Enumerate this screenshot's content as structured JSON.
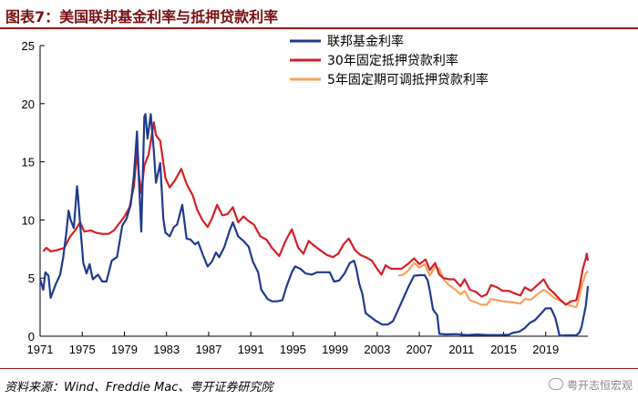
{
  "header": {
    "title": "图表7：美国联邦基金利率与抵押贷款利率"
  },
  "footer": {
    "source": "资料来源：Wind、Freddie Mac、粤开证券研究院",
    "watermark": "粤开志恒宏观"
  },
  "chart_data": {
    "type": "line",
    "title": "",
    "xlabel": "",
    "ylabel": "",
    "xlim": [
      1971,
      2023
    ],
    "ylim": [
      0,
      25
    ],
    "x_ticks": [
      "1971",
      "1975",
      "1979",
      "1983",
      "1987",
      "1991",
      "1995",
      "1999",
      "2003",
      "2007",
      "2011",
      "2015",
      "2019"
    ],
    "y_ticks": [
      "0",
      "5",
      "10",
      "15",
      "20",
      "25"
    ],
    "grid": false,
    "legend_position": "top-right",
    "series": [
      {
        "name": "联邦基金利率",
        "color": "#1f3b8f",
        "points": [
          [
            1971.0,
            4.9
          ],
          [
            1971.3,
            4.0
          ],
          [
            1971.5,
            5.5
          ],
          [
            1971.8,
            5.2
          ],
          [
            1972.0,
            3.3
          ],
          [
            1972.5,
            4.5
          ],
          [
            1972.9,
            5.3
          ],
          [
            1973.2,
            6.8
          ],
          [
            1973.5,
            9.0
          ],
          [
            1973.7,
            10.8
          ],
          [
            1973.9,
            10.0
          ],
          [
            1974.2,
            9.3
          ],
          [
            1974.5,
            12.9
          ],
          [
            1974.6,
            12.0
          ],
          [
            1974.9,
            8.5
          ],
          [
            1975.1,
            6.3
          ],
          [
            1975.4,
            5.4
          ],
          [
            1975.7,
            6.2
          ],
          [
            1976.0,
            4.9
          ],
          [
            1976.5,
            5.3
          ],
          [
            1976.9,
            4.7
          ],
          [
            1977.3,
            4.7
          ],
          [
            1977.8,
            6.5
          ],
          [
            1978.3,
            6.8
          ],
          [
            1978.8,
            9.5
          ],
          [
            1979.2,
            10.1
          ],
          [
            1979.6,
            11.3
          ],
          [
            1979.9,
            13.8
          ],
          [
            1980.2,
            17.6
          ],
          [
            1980.4,
            13.2
          ],
          [
            1980.6,
            9.0
          ],
          [
            1980.9,
            18.9
          ],
          [
            1981.0,
            19.1
          ],
          [
            1981.2,
            17.0
          ],
          [
            1981.5,
            19.1
          ],
          [
            1981.8,
            15.9
          ],
          [
            1982.0,
            13.2
          ],
          [
            1982.4,
            14.9
          ],
          [
            1982.7,
            10.1
          ],
          [
            1982.9,
            8.9
          ],
          [
            1983.3,
            8.6
          ],
          [
            1983.7,
            9.4
          ],
          [
            1984.0,
            9.6
          ],
          [
            1984.5,
            11.3
          ],
          [
            1984.9,
            8.4
          ],
          [
            1985.3,
            8.3
          ],
          [
            1985.7,
            7.9
          ],
          [
            1986.0,
            8.1
          ],
          [
            1986.5,
            6.9
          ],
          [
            1986.9,
            6.0
          ],
          [
            1987.3,
            6.4
          ],
          [
            1987.7,
            7.2
          ],
          [
            1988.0,
            6.8
          ],
          [
            1988.5,
            7.7
          ],
          [
            1989.0,
            9.1
          ],
          [
            1989.3,
            9.8
          ],
          [
            1989.8,
            8.6
          ],
          [
            1990.3,
            8.2
          ],
          [
            1990.8,
            7.7
          ],
          [
            1991.2,
            6.4
          ],
          [
            1991.7,
            5.5
          ],
          [
            1992.0,
            4.0
          ],
          [
            1992.6,
            3.2
          ],
          [
            1993.0,
            3.0
          ],
          [
            1993.5,
            3.0
          ],
          [
            1994.0,
            3.1
          ],
          [
            1994.4,
            4.3
          ],
          [
            1994.9,
            5.5
          ],
          [
            1995.2,
            6.0
          ],
          [
            1995.7,
            5.8
          ],
          [
            1996.2,
            5.4
          ],
          [
            1996.8,
            5.3
          ],
          [
            1997.3,
            5.5
          ],
          [
            1997.9,
            5.5
          ],
          [
            1998.5,
            5.5
          ],
          [
            1998.9,
            4.7
          ],
          [
            1999.4,
            4.8
          ],
          [
            1999.9,
            5.4
          ],
          [
            2000.4,
            6.3
          ],
          [
            2000.8,
            6.5
          ],
          [
            2001.0,
            5.9
          ],
          [
            2001.3,
            4.5
          ],
          [
            2001.6,
            3.6
          ],
          [
            2001.9,
            2.0
          ],
          [
            2002.3,
            1.7
          ],
          [
            2002.9,
            1.3
          ],
          [
            2003.5,
            1.0
          ],
          [
            2004.0,
            1.0
          ],
          [
            2004.5,
            1.3
          ],
          [
            2005.0,
            2.3
          ],
          [
            2005.5,
            3.3
          ],
          [
            2006.0,
            4.3
          ],
          [
            2006.5,
            5.2
          ],
          [
            2007.0,
            5.25
          ],
          [
            2007.5,
            5.25
          ],
          [
            2007.8,
            4.8
          ],
          [
            2008.0,
            3.9
          ],
          [
            2008.3,
            2.3
          ],
          [
            2008.7,
            1.8
          ],
          [
            2008.9,
            0.2
          ],
          [
            2009.5,
            0.16
          ],
          [
            2010.5,
            0.18
          ],
          [
            2011.5,
            0.1
          ],
          [
            2012.5,
            0.15
          ],
          [
            2013.5,
            0.1
          ],
          [
            2014.5,
            0.1
          ],
          [
            2015.5,
            0.13
          ],
          [
            2015.9,
            0.3
          ],
          [
            2016.5,
            0.4
          ],
          [
            2017.0,
            0.7
          ],
          [
            2017.5,
            1.15
          ],
          [
            2018.0,
            1.4
          ],
          [
            2018.5,
            1.9
          ],
          [
            2019.0,
            2.4
          ],
          [
            2019.5,
            2.4
          ],
          [
            2019.9,
            1.6
          ],
          [
            2020.2,
            0.5
          ],
          [
            2020.3,
            0.05
          ],
          [
            2021.0,
            0.08
          ],
          [
            2021.9,
            0.08
          ],
          [
            2022.2,
            0.33
          ],
          [
            2022.4,
            0.8
          ],
          [
            2022.6,
            1.7
          ],
          [
            2022.8,
            2.6
          ],
          [
            2022.95,
            3.8
          ],
          [
            2023.0,
            4.3
          ]
        ]
      },
      {
        "name": "30年固定抵押贷款利率",
        "color": "#d41f26",
        "points": [
          [
            1971.3,
            7.3
          ],
          [
            1971.6,
            7.6
          ],
          [
            1972.0,
            7.3
          ],
          [
            1972.6,
            7.4
          ],
          [
            1973.3,
            7.6
          ],
          [
            1973.8,
            8.5
          ],
          [
            1974.4,
            9.2
          ],
          [
            1974.8,
            9.8
          ],
          [
            1975.2,
            9.0
          ],
          [
            1975.8,
            9.1
          ],
          [
            1976.3,
            8.9
          ],
          [
            1976.9,
            8.8
          ],
          [
            1977.5,
            8.8
          ],
          [
            1978.0,
            9.1
          ],
          [
            1978.6,
            9.8
          ],
          [
            1979.0,
            10.3
          ],
          [
            1979.5,
            11.1
          ],
          [
            1979.9,
            12.9
          ],
          [
            1980.2,
            15.8
          ],
          [
            1980.4,
            13.8
          ],
          [
            1980.6,
            12.3
          ],
          [
            1980.9,
            14.7
          ],
          [
            1981.3,
            15.6
          ],
          [
            1981.8,
            18.4
          ],
          [
            1982.0,
            17.3
          ],
          [
            1982.4,
            16.8
          ],
          [
            1982.9,
            13.6
          ],
          [
            1983.3,
            12.8
          ],
          [
            1983.8,
            13.4
          ],
          [
            1984.4,
            14.4
          ],
          [
            1984.9,
            13.1
          ],
          [
            1985.5,
            12.1
          ],
          [
            1985.9,
            10.9
          ],
          [
            1986.4,
            10.0
          ],
          [
            1986.9,
            9.4
          ],
          [
            1987.3,
            10.1
          ],
          [
            1987.8,
            11.3
          ],
          [
            1988.3,
            10.4
          ],
          [
            1988.8,
            10.5
          ],
          [
            1989.3,
            11.1
          ],
          [
            1989.8,
            9.8
          ],
          [
            1990.3,
            10.3
          ],
          [
            1990.8,
            9.9
          ],
          [
            1991.3,
            9.6
          ],
          [
            1991.9,
            8.6
          ],
          [
            1992.5,
            8.3
          ],
          [
            1993.0,
            7.6
          ],
          [
            1993.7,
            6.9
          ],
          [
            1994.3,
            8.2
          ],
          [
            1994.9,
            9.2
          ],
          [
            1995.5,
            7.6
          ],
          [
            1996.0,
            7.1
          ],
          [
            1996.5,
            8.2
          ],
          [
            1997.0,
            7.8
          ],
          [
            1997.6,
            7.4
          ],
          [
            1998.2,
            7.0
          ],
          [
            1998.8,
            6.8
          ],
          [
            1999.3,
            7.1
          ],
          [
            1999.8,
            7.9
          ],
          [
            2000.3,
            8.4
          ],
          [
            2000.9,
            7.4
          ],
          [
            2001.4,
            7.0
          ],
          [
            2001.9,
            6.8
          ],
          [
            2002.5,
            6.5
          ],
          [
            2003.0,
            5.8
          ],
          [
            2003.4,
            5.3
          ],
          [
            2003.8,
            6.1
          ],
          [
            2004.3,
            5.8
          ],
          [
            2004.8,
            5.8
          ],
          [
            2005.3,
            5.8
          ],
          [
            2005.9,
            6.2
          ],
          [
            2006.5,
            6.7
          ],
          [
            2007.0,
            6.2
          ],
          [
            2007.6,
            6.6
          ],
          [
            2008.0,
            5.7
          ],
          [
            2008.5,
            6.3
          ],
          [
            2008.9,
            5.3
          ],
          [
            2009.3,
            5.0
          ],
          [
            2009.8,
            4.9
          ],
          [
            2010.3,
            4.9
          ],
          [
            2010.9,
            4.3
          ],
          [
            2011.3,
            4.9
          ],
          [
            2011.8,
            4.0
          ],
          [
            2012.4,
            3.8
          ],
          [
            2012.9,
            3.4
          ],
          [
            2013.4,
            3.6
          ],
          [
            2013.8,
            4.4
          ],
          [
            2014.4,
            4.2
          ],
          [
            2014.9,
            3.9
          ],
          [
            2015.5,
            3.9
          ],
          [
            2016.0,
            3.7
          ],
          [
            2016.6,
            3.5
          ],
          [
            2017.0,
            4.2
          ],
          [
            2017.6,
            3.9
          ],
          [
            2018.2,
            4.4
          ],
          [
            2018.8,
            4.9
          ],
          [
            2019.3,
            4.1
          ],
          [
            2019.8,
            3.7
          ],
          [
            2020.3,
            3.2
          ],
          [
            2020.9,
            2.7
          ],
          [
            2021.4,
            3.0
          ],
          [
            2021.9,
            3.1
          ],
          [
            2022.2,
            4.2
          ],
          [
            2022.5,
            5.7
          ],
          [
            2022.8,
            6.7
          ],
          [
            2022.9,
            7.1
          ],
          [
            2023.0,
            6.5
          ]
        ]
      },
      {
        "name": "5年固定期可调抵押贷款利率",
        "color": "#f4a25a",
        "points": [
          [
            2005.0,
            5.2
          ],
          [
            2005.5,
            5.3
          ],
          [
            2006.0,
            5.7
          ],
          [
            2006.5,
            6.3
          ],
          [
            2007.0,
            5.9
          ],
          [
            2007.5,
            6.2
          ],
          [
            2008.0,
            5.2
          ],
          [
            2008.5,
            6.0
          ],
          [
            2008.9,
            5.8
          ],
          [
            2009.3,
            4.9
          ],
          [
            2009.8,
            4.4
          ],
          [
            2010.3,
            4.1
          ],
          [
            2010.9,
            3.6
          ],
          [
            2011.3,
            3.9
          ],
          [
            2011.8,
            3.1
          ],
          [
            2012.4,
            2.9
          ],
          [
            2012.9,
            2.7
          ],
          [
            2013.4,
            2.7
          ],
          [
            2013.8,
            3.2
          ],
          [
            2014.4,
            3.1
          ],
          [
            2014.9,
            3.0
          ],
          [
            2015.5,
            2.95
          ],
          [
            2016.0,
            2.9
          ],
          [
            2016.6,
            2.8
          ],
          [
            2017.0,
            3.2
          ],
          [
            2017.6,
            3.15
          ],
          [
            2018.2,
            3.6
          ],
          [
            2018.8,
            4.0
          ],
          [
            2019.3,
            3.7
          ],
          [
            2019.8,
            3.3
          ],
          [
            2020.3,
            3.1
          ],
          [
            2020.9,
            2.8
          ],
          [
            2021.4,
            2.6
          ],
          [
            2021.9,
            2.5
          ],
          [
            2022.2,
            3.4
          ],
          [
            2022.5,
            4.6
          ],
          [
            2022.8,
            5.4
          ],
          [
            2023.0,
            5.6
          ]
        ]
      }
    ]
  }
}
